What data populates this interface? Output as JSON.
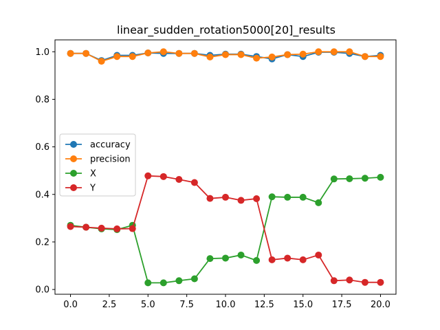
{
  "chart_data": {
    "type": "line",
    "title": "linear_sudden_rotation5000[20]_results",
    "xlabel": "",
    "ylabel": "",
    "xlim": [
      -1.0,
      21.0
    ],
    "ylim": [
      -0.02,
      1.05
    ],
    "x": [
      0,
      1,
      2,
      3,
      4,
      5,
      6,
      7,
      8,
      9,
      10,
      11,
      12,
      13,
      14,
      15,
      16,
      17,
      18,
      19,
      20
    ],
    "xticks": [
      0.0,
      2.5,
      5.0,
      7.5,
      10.0,
      12.5,
      15.0,
      17.5,
      20.0
    ],
    "xtick_labels": [
      "0.0",
      "2.5",
      "5.0",
      "7.5",
      "10.0",
      "12.5",
      "15.0",
      "17.5",
      "20.0"
    ],
    "yticks": [
      0.0,
      0.2,
      0.4,
      0.6,
      0.8,
      1.0
    ],
    "ytick_labels": [
      "0.0",
      "0.2",
      "0.4",
      "0.6",
      "0.8",
      "1.0"
    ],
    "grid": false,
    "legend_position": "center-left",
    "series": [
      {
        "name": "accuracy",
        "color": "#1f77b4",
        "values": [
          0.993,
          0.993,
          0.963,
          0.985,
          0.985,
          0.995,
          0.993,
          0.993,
          0.993,
          0.985,
          0.99,
          0.99,
          0.98,
          0.97,
          0.988,
          0.98,
          0.998,
          0.998,
          0.993,
          0.98,
          0.985
        ]
      },
      {
        "name": "precision",
        "color": "#ff7f0e",
        "values": [
          0.993,
          0.993,
          0.96,
          0.98,
          0.98,
          0.995,
          1.0,
          0.993,
          0.993,
          0.978,
          0.988,
          0.988,
          0.973,
          0.978,
          0.988,
          0.99,
          1.0,
          1.0,
          1.0,
          0.98,
          0.98
        ]
      },
      {
        "name": "X",
        "color": "#2ca02c",
        "values": [
          0.27,
          0.262,
          0.255,
          0.252,
          0.27,
          0.028,
          0.028,
          0.037,
          0.045,
          0.13,
          0.132,
          0.145,
          0.122,
          0.39,
          0.388,
          0.388,
          0.365,
          0.465,
          0.466,
          0.468,
          0.472
        ]
      },
      {
        "name": "Y",
        "color": "#d62728",
        "values": [
          0.265,
          0.262,
          0.258,
          0.255,
          0.256,
          0.478,
          0.475,
          0.463,
          0.45,
          0.383,
          0.388,
          0.375,
          0.382,
          0.125,
          0.132,
          0.125,
          0.145,
          0.037,
          0.04,
          0.03,
          0.03
        ]
      }
    ]
  }
}
